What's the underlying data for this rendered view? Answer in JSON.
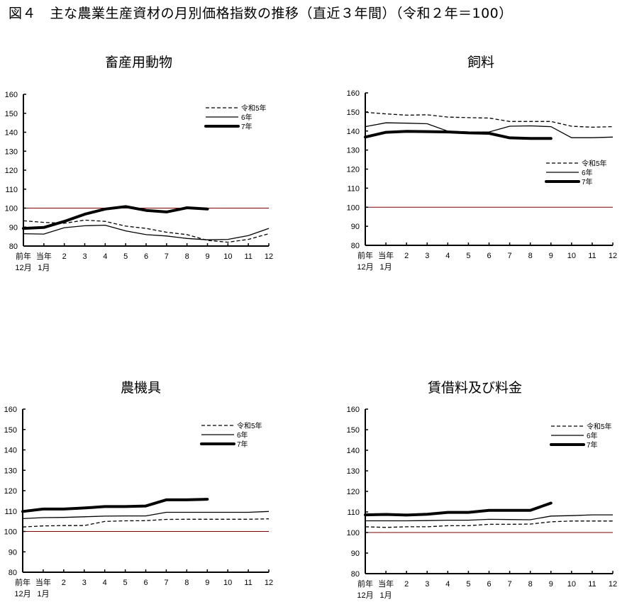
{
  "figure_title": "図４　主な農業生産資材の月別価格指数の推移（直近３年間）（令和２年＝100）",
  "x_labels_line1": [
    "前年",
    "当年",
    "2",
    "3",
    "4",
    "5",
    "6",
    "7",
    "8",
    "9",
    "10",
    "11",
    "12"
  ],
  "x_labels_line2": [
    "12月",
    "1月",
    "",
    "",
    "",
    "",
    "",
    "",
    "",
    "",
    "",
    "",
    ""
  ],
  "y_ticks": [
    80,
    90,
    100,
    110,
    120,
    130,
    140,
    150,
    160
  ],
  "legend": [
    "令和5年",
    "6年",
    "7年"
  ],
  "colors": {
    "series": "#000000",
    "reference_line": "#7a0000"
  },
  "chart_data": [
    {
      "type": "line",
      "title": "畜産用動物",
      "categories": [
        "前年12月",
        "当年1月",
        "2",
        "3",
        "4",
        "5",
        "6",
        "7",
        "8",
        "9",
        "10",
        "11",
        "12"
      ],
      "series": [
        {
          "name": "令和5年",
          "style": "dashed",
          "values": [
            93.3,
            92.5,
            92.0,
            93.7,
            93.0,
            90.5,
            89.3,
            87.3,
            86.0,
            83.0,
            82.0,
            83.5,
            86.5
          ]
        },
        {
          "name": "6年",
          "style": "solid",
          "values": [
            86.5,
            86.3,
            89.7,
            90.7,
            91.0,
            88.0,
            86.0,
            85.3,
            84.0,
            83.3,
            83.5,
            85.5,
            89.3
          ]
        },
        {
          "name": "7年",
          "style": "thick",
          "values": [
            89.3,
            89.8,
            93.0,
            96.8,
            99.5,
            100.8,
            98.8,
            98.0,
            100.2,
            99.5
          ]
        }
      ],
      "reference_line": 100,
      "xlabel": "",
      "ylabel": "",
      "ylim": [
        80,
        160
      ],
      "grid": false,
      "legend_position": "top-right"
    },
    {
      "type": "line",
      "title": "飼料",
      "categories": [
        "前年12月",
        "当年1月",
        "2",
        "3",
        "4",
        "5",
        "6",
        "7",
        "8",
        "9",
        "10",
        "11",
        "12"
      ],
      "series": [
        {
          "name": "令和5年",
          "style": "dashed",
          "values": [
            149.8,
            149.0,
            148.3,
            148.5,
            147.3,
            147.0,
            146.8,
            145.0,
            145.0,
            145.0,
            142.5,
            142.0,
            142.3
          ]
        },
        {
          "name": "6年",
          "style": "solid",
          "values": [
            142.3,
            144.3,
            144.1,
            143.8,
            139.9,
            139.5,
            139.5,
            142.5,
            142.7,
            142.3,
            136.5,
            136.5,
            136.8
          ]
        },
        {
          "name": "7年",
          "style": "thick",
          "values": [
            136.8,
            139.3,
            139.8,
            139.7,
            139.5,
            139.0,
            138.8,
            136.4,
            136.1,
            136.1
          ]
        }
      ],
      "reference_line": 100,
      "xlabel": "",
      "ylabel": "",
      "ylim": [
        80,
        160
      ],
      "grid": false,
      "legend_position": "right-middle"
    },
    {
      "type": "line",
      "title": "農機具",
      "categories": [
        "前年12月",
        "当年1月",
        "2",
        "3",
        "4",
        "5",
        "6",
        "7",
        "8",
        "9",
        "10",
        "11",
        "12"
      ],
      "series": [
        {
          "name": "令和5年",
          "style": "dashed",
          "values": [
            102.2,
            102.7,
            102.9,
            102.9,
            104.9,
            105.2,
            105.3,
            105.9,
            106.0,
            106.0,
            106.0,
            106.0,
            106.2
          ]
        },
        {
          "name": "6年",
          "style": "solid",
          "values": [
            106.3,
            106.8,
            106.9,
            107.2,
            107.5,
            107.6,
            107.6,
            109.4,
            109.4,
            109.4,
            109.4,
            109.4,
            109.8
          ]
        },
        {
          "name": "7年",
          "style": "thick",
          "values": [
            109.8,
            111.0,
            111.0,
            111.5,
            112.2,
            112.2,
            112.5,
            115.5,
            115.5,
            115.8
          ]
        }
      ],
      "reference_line": 100,
      "xlabel": "",
      "ylabel": "",
      "ylim": [
        80,
        160
      ],
      "grid": false,
      "legend_position": "top-right"
    },
    {
      "type": "line",
      "title": "賃借料及び料金",
      "categories": [
        "前年12月",
        "当年1月",
        "2",
        "3",
        "4",
        "5",
        "6",
        "7",
        "8",
        "9",
        "10",
        "11",
        "12"
      ],
      "series": [
        {
          "name": "令和5年",
          "style": "dashed",
          "values": [
            102.8,
            102.5,
            102.8,
            102.8,
            103.3,
            103.3,
            104.0,
            104.0,
            104.1,
            105.2,
            105.6,
            105.6,
            105.6
          ]
        },
        {
          "name": "6年",
          "style": "solid",
          "values": [
            105.7,
            105.7,
            105.7,
            105.8,
            106.0,
            106.0,
            106.4,
            106.3,
            106.2,
            108.0,
            108.2,
            108.6,
            108.6
          ]
        },
        {
          "name": "7年",
          "style": "thick",
          "values": [
            108.6,
            108.8,
            108.5,
            108.9,
            109.8,
            109.8,
            110.8,
            110.8,
            110.8,
            114.3
          ]
        }
      ],
      "reference_line": 100,
      "xlabel": "",
      "ylabel": "",
      "ylim": [
        80,
        160
      ],
      "grid": false,
      "legend_position": "top-right"
    }
  ]
}
